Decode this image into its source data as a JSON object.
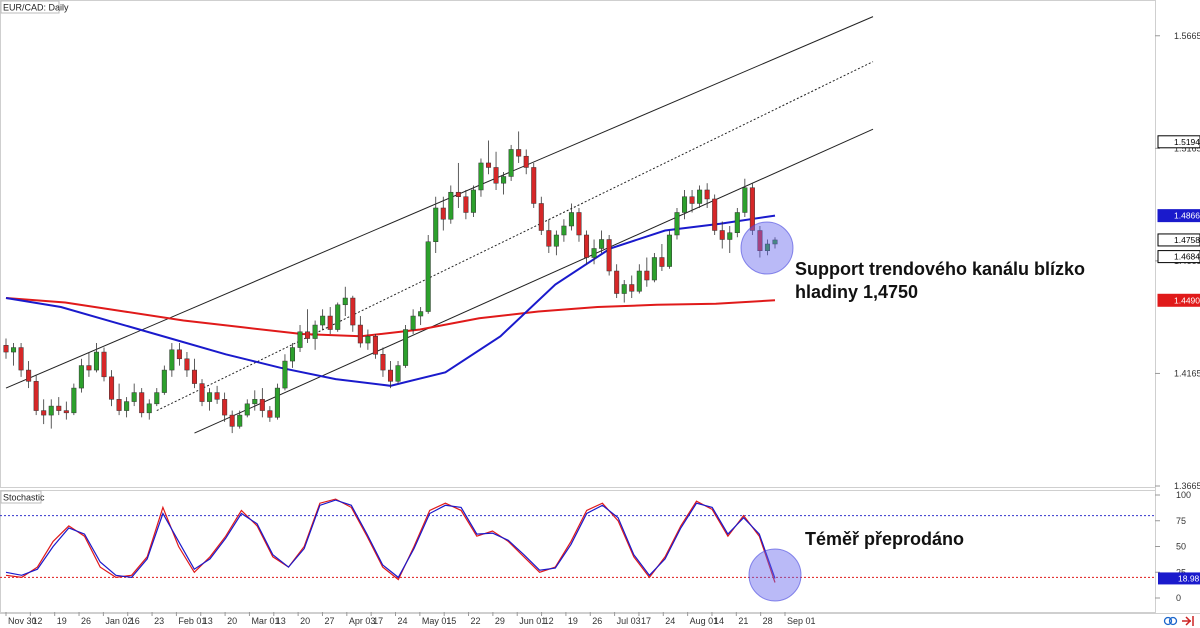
{
  "chart_data": [
    {
      "type": "candlestick",
      "title": "EUR/CAD: Daily",
      "ylim": [
        1.3665,
        1.5815
      ],
      "yticks": [
        "1.5665",
        "1.5165",
        "1.4665",
        "1.4165",
        "1.3665"
      ],
      "x_labels": [
        "Nov 30",
        "12",
        "19",
        "26",
        "Jan 02",
        "16",
        "23",
        "Feb 01",
        "13",
        "20",
        "Mar 01",
        "13",
        "20",
        "27",
        "Apr 03",
        "17",
        "24",
        "May 01",
        "15",
        "22",
        "29",
        "Jun 01",
        "12",
        "19",
        "26",
        "Jul 03",
        "17",
        "24",
        "Aug 01",
        "14",
        "21",
        "28",
        "Sep 01"
      ],
      "ohlc_approx": [
        [
          1.429,
          1.432,
          1.423,
          1.426
        ],
        [
          1.426,
          1.43,
          1.42,
          1.428
        ],
        [
          1.428,
          1.43,
          1.415,
          1.418
        ],
        [
          1.418,
          1.422,
          1.41,
          1.413
        ],
        [
          1.413,
          1.416,
          1.398,
          1.4
        ],
        [
          1.4,
          1.405,
          1.394,
          1.398
        ],
        [
          1.398,
          1.405,
          1.392,
          1.402
        ],
        [
          1.402,
          1.406,
          1.398,
          1.4
        ],
        [
          1.4,
          1.404,
          1.396,
          1.399
        ],
        [
          1.399,
          1.412,
          1.398,
          1.41
        ],
        [
          1.41,
          1.423,
          1.408,
          1.42
        ],
        [
          1.42,
          1.426,
          1.415,
          1.418
        ],
        [
          1.418,
          1.43,
          1.417,
          1.426
        ],
        [
          1.426,
          1.428,
          1.413,
          1.415
        ],
        [
          1.415,
          1.418,
          1.402,
          1.405
        ],
        [
          1.405,
          1.412,
          1.398,
          1.4
        ],
        [
          1.4,
          1.406,
          1.397,
          1.404
        ],
        [
          1.404,
          1.412,
          1.402,
          1.408
        ],
        [
          1.408,
          1.41,
          1.397,
          1.399
        ],
        [
          1.399,
          1.405,
          1.396,
          1.403
        ],
        [
          1.403,
          1.41,
          1.402,
          1.408
        ],
        [
          1.408,
          1.42,
          1.407,
          1.418
        ],
        [
          1.418,
          1.43,
          1.415,
          1.427
        ],
        [
          1.427,
          1.43,
          1.42,
          1.423
        ],
        [
          1.423,
          1.426,
          1.415,
          1.418
        ],
        [
          1.418,
          1.423,
          1.41,
          1.412
        ],
        [
          1.412,
          1.414,
          1.402,
          1.404
        ],
        [
          1.404,
          1.41,
          1.4,
          1.408
        ],
        [
          1.408,
          1.411,
          1.403,
          1.405
        ],
        [
          1.405,
          1.408,
          1.395,
          1.398
        ],
        [
          1.398,
          1.4,
          1.39,
          1.393
        ],
        [
          1.393,
          1.4,
          1.392,
          1.398
        ],
        [
          1.398,
          1.405,
          1.397,
          1.403
        ],
        [
          1.403,
          1.409,
          1.4,
          1.405
        ],
        [
          1.405,
          1.41,
          1.397,
          1.4
        ],
        [
          1.4,
          1.402,
          1.395,
          1.397
        ],
        [
          1.397,
          1.412,
          1.396,
          1.41
        ],
        [
          1.41,
          1.425,
          1.409,
          1.422
        ],
        [
          1.422,
          1.43,
          1.419,
          1.428
        ],
        [
          1.428,
          1.438,
          1.426,
          1.435
        ],
        [
          1.435,
          1.445,
          1.43,
          1.432
        ],
        [
          1.432,
          1.44,
          1.427,
          1.438
        ],
        [
          1.438,
          1.445,
          1.436,
          1.442
        ],
        [
          1.442,
          1.446,
          1.434,
          1.436
        ],
        [
          1.436,
          1.448,
          1.435,
          1.447
        ],
        [
          1.447,
          1.455,
          1.442,
          1.45
        ],
        [
          1.45,
          1.451,
          1.435,
          1.438
        ],
        [
          1.438,
          1.442,
          1.428,
          1.43
        ],
        [
          1.43,
          1.436,
          1.427,
          1.433
        ],
        [
          1.433,
          1.434,
          1.423,
          1.425
        ],
        [
          1.425,
          1.428,
          1.415,
          1.418
        ],
        [
          1.418,
          1.422,
          1.41,
          1.413
        ],
        [
          1.413,
          1.422,
          1.412,
          1.42
        ],
        [
          1.42,
          1.438,
          1.419,
          1.436
        ],
        [
          1.436,
          1.445,
          1.434,
          1.442
        ],
        [
          1.442,
          1.446,
          1.438,
          1.444
        ],
        [
          1.444,
          1.478,
          1.443,
          1.475
        ],
        [
          1.475,
          1.495,
          1.47,
          1.49
        ],
        [
          1.49,
          1.495,
          1.48,
          1.485
        ],
        [
          1.485,
          1.5,
          1.483,
          1.497
        ],
        [
          1.497,
          1.51,
          1.49,
          1.495
        ],
        [
          1.495,
          1.498,
          1.485,
          1.488
        ],
        [
          1.488,
          1.5,
          1.486,
          1.498
        ],
        [
          1.498,
          1.512,
          1.495,
          1.51
        ],
        [
          1.51,
          1.52,
          1.505,
          1.508
        ],
        [
          1.508,
          1.515,
          1.498,
          1.501
        ],
        [
          1.501,
          1.506,
          1.496,
          1.504
        ],
        [
          1.504,
          1.518,
          1.502,
          1.516
        ],
        [
          1.516,
          1.524,
          1.51,
          1.513
        ],
        [
          1.513,
          1.516,
          1.505,
          1.508
        ],
        [
          1.508,
          1.51,
          1.49,
          1.492
        ],
        [
          1.492,
          1.495,
          1.478,
          1.48
        ],
        [
          1.48,
          1.485,
          1.47,
          1.473
        ],
        [
          1.473,
          1.48,
          1.469,
          1.478
        ],
        [
          1.478,
          1.485,
          1.475,
          1.482
        ],
        [
          1.482,
          1.492,
          1.48,
          1.488
        ],
        [
          1.488,
          1.49,
          1.475,
          1.478
        ],
        [
          1.478,
          1.48,
          1.465,
          1.468
        ],
        [
          1.468,
          1.476,
          1.465,
          1.472
        ],
        [
          1.472,
          1.48,
          1.47,
          1.476
        ],
        [
          1.476,
          1.478,
          1.46,
          1.462
        ],
        [
          1.462,
          1.465,
          1.45,
          1.452
        ],
        [
          1.452,
          1.458,
          1.448,
          1.456
        ],
        [
          1.456,
          1.46,
          1.45,
          1.453
        ],
        [
          1.453,
          1.465,
          1.452,
          1.462
        ],
        [
          1.462,
          1.468,
          1.455,
          1.458
        ],
        [
          1.458,
          1.47,
          1.457,
          1.468
        ],
        [
          1.468,
          1.474,
          1.462,
          1.464
        ],
        [
          1.464,
          1.48,
          1.463,
          1.478
        ],
        [
          1.478,
          1.49,
          1.476,
          1.488
        ],
        [
          1.488,
          1.498,
          1.485,
          1.495
        ],
        [
          1.495,
          1.498,
          1.488,
          1.492
        ],
        [
          1.492,
          1.5,
          1.49,
          1.498
        ],
        [
          1.498,
          1.501,
          1.49,
          1.494
        ],
        [
          1.494,
          1.496,
          1.478,
          1.48
        ],
        [
          1.48,
          1.484,
          1.472,
          1.476
        ],
        [
          1.476,
          1.482,
          1.47,
          1.479
        ],
        [
          1.479,
          1.49,
          1.477,
          1.488
        ],
        [
          1.488,
          1.503,
          1.486,
          1.499
        ],
        [
          1.499,
          1.501,
          1.478,
          1.48
        ],
        [
          1.48,
          1.482,
          1.468,
          1.471
        ],
        [
          1.471,
          1.476,
          1.469,
          1.474
        ],
        [
          1.474,
          1.477,
          1.472,
          1.4758
        ]
      ],
      "ma_blue_approx": [
        1.45,
        1.446,
        1.439,
        1.432,
        1.425,
        1.419,
        1.414,
        1.411,
        1.417,
        1.433,
        1.456,
        1.472,
        1.48,
        1.483,
        1.4866
      ],
      "ma_red_approx": [
        1.45,
        1.448,
        1.444,
        1.44,
        1.437,
        1.434,
        1.433,
        1.436,
        1.441,
        1.444,
        1.446,
        1.447,
        1.4475,
        1.449
      ],
      "price_badges": [
        {
          "label": "1.5194",
          "bg": "#ffffff",
          "fg": "#000000",
          "border": "#000000",
          "value": 1.5194
        },
        {
          "label": "1.4866",
          "bg": "#1a1acc",
          "fg": "#ffffff",
          "border": "#1a1acc",
          "value": 1.4866
        },
        {
          "label": "1.4758",
          "bg": "#ffffff",
          "fg": "#000000",
          "border": "#000000",
          "value": 1.4758
        },
        {
          "label": "1.4684",
          "bg": "#ffffff",
          "fg": "#000000",
          "border": "#000000",
          "value": 1.4684
        },
        {
          "label": "1.4490",
          "bg": "#e01a1a",
          "fg": "#ffffff",
          "border": "#e01a1a",
          "value": 1.449
        }
      ],
      "channel_lines_approx": [
        {
          "style": "solid",
          "from": [
            0,
            1.41
          ],
          "to": [
            115,
            1.575
          ]
        },
        {
          "style": "dotted",
          "from": [
            20,
            1.4
          ],
          "to": [
            115,
            1.555
          ]
        },
        {
          "style": "solid",
          "from": [
            25,
            1.39
          ],
          "to": [
            115,
            1.525
          ]
        }
      ],
      "annotation": "Support trendového kanálu blízko\nhladiny 1,4750",
      "colors": {
        "bull": "#2ca02c",
        "bear": "#d62728",
        "ma_blue": "#1a1acc",
        "ma_red": "#e01a1a",
        "channel": "#222222"
      }
    },
    {
      "type": "line",
      "title": "Stochastic",
      "ylim": [
        0,
        100
      ],
      "yticks": [
        "100",
        "75",
        "50",
        "25",
        "0"
      ],
      "levels": [
        80,
        20
      ],
      "series": [
        {
          "color": "#e01a1a",
          "values": [
            22,
            20,
            30,
            55,
            70,
            60,
            30,
            20,
            22,
            40,
            88,
            50,
            25,
            40,
            60,
            85,
            70,
            40,
            30,
            50,
            92,
            96,
            88,
            60,
            30,
            18,
            50,
            85,
            92,
            85,
            60,
            65,
            55,
            40,
            25,
            30,
            55,
            85,
            92,
            75,
            40,
            20,
            40,
            70,
            94,
            86,
            60,
            80,
            60,
            15
          ]
        },
        {
          "color": "#1a1acc",
          "values": [
            25,
            22,
            28,
            50,
            68,
            62,
            35,
            22,
            20,
            38,
            82,
            55,
            28,
            38,
            58,
            82,
            72,
            42,
            30,
            48,
            90,
            95,
            90,
            62,
            32,
            20,
            48,
            82,
            90,
            88,
            62,
            63,
            56,
            42,
            27,
            29,
            52,
            82,
            90,
            78,
            42,
            22,
            38,
            68,
            92,
            88,
            62,
            78,
            62,
            19
          ]
        }
      ],
      "value_badge": {
        "label": "18.98",
        "bg": "#1a1acc",
        "fg": "#ffffff"
      },
      "annotation": "Téměř přeprodáno"
    }
  ]
}
